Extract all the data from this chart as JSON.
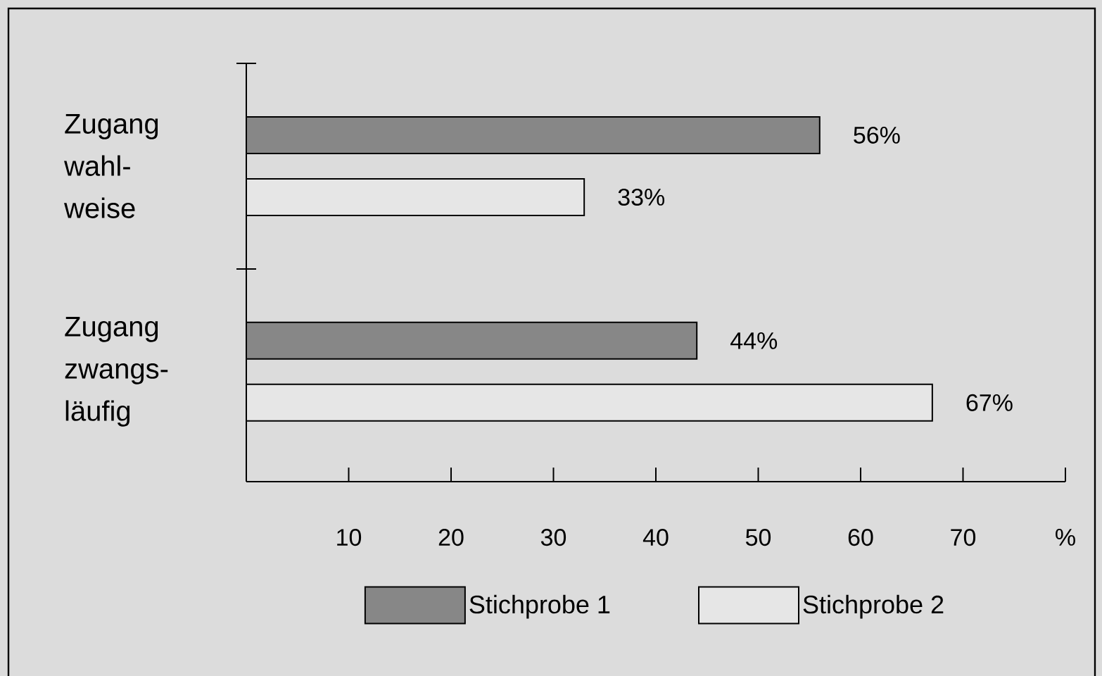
{
  "chart_data": {
    "type": "bar",
    "orientation": "horizontal",
    "categories": [
      "Zugang wahl-weise",
      "Zugang zwangs-läufig"
    ],
    "series": [
      {
        "name": "Stichprobe 1",
        "color": "#878787",
        "values": [
          56,
          44
        ],
        "value_labels": [
          "56%",
          "44%"
        ]
      },
      {
        "name": "Stichprobe 2",
        "color": "#e6e6e6",
        "values": [
          33,
          67
        ],
        "value_labels": [
          "33%",
          "67%"
        ]
      }
    ],
    "xlim": [
      0,
      80
    ],
    "xticks": [
      10,
      20,
      30,
      40,
      50,
      60,
      70,
      {
        "value": 80,
        "label": "%"
      }
    ],
    "legend": "bottom",
    "grid": false
  }
}
